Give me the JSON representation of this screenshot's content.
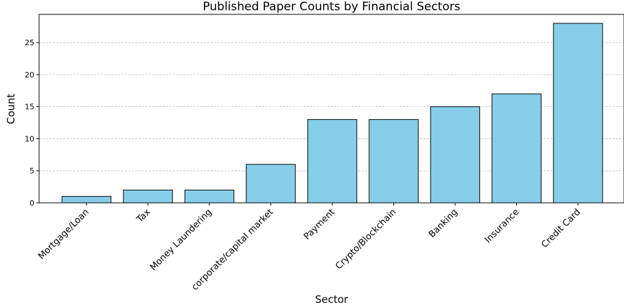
{
  "chart_data": {
    "type": "bar",
    "title": "Published Paper Counts by Financial Sectors",
    "xlabel": "Sector",
    "ylabel": "Count",
    "categories": [
      "Mortgage/Loan",
      "Tax",
      "Money Laundering",
      "corporate/capital market",
      "Payment",
      "Crypto/Blockchain",
      "Banking",
      "Insurance",
      "Credit Card"
    ],
    "values": [
      1,
      2,
      2,
      6,
      13,
      13,
      15,
      17,
      28
    ],
    "ylim": [
      0,
      29.4
    ],
    "yticks": [
      0,
      5,
      10,
      15,
      20,
      25
    ],
    "grid": "y-dashed",
    "bar_color": "#87CEEB",
    "edge_color": "#000000"
  }
}
